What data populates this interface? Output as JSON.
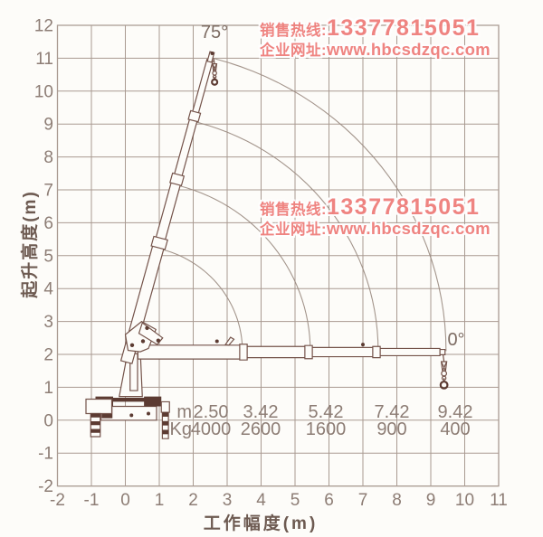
{
  "page": {
    "background": "#fdfcf9"
  },
  "watermark": {
    "hotline_label": "销售热线:",
    "hotline_number": "13377815051",
    "website_label": "企业网址:",
    "website_url": "www.hbcsdzqc.com",
    "color": "#ef7e7b",
    "instances": 2
  },
  "chart_data": {
    "type": "line",
    "xlabel": "工作幅度(m)",
    "ylabel": "起升高度(m)",
    "xlim": [
      -2,
      11
    ],
    "ylim": [
      -2,
      12
    ],
    "xticks": [
      -2,
      -1,
      0,
      1,
      2,
      3,
      4,
      5,
      6,
      7,
      8,
      9,
      10,
      11
    ],
    "yticks": [
      -2,
      -1,
      0,
      1,
      2,
      3,
      4,
      5,
      6,
      7,
      8,
      9,
      10,
      11,
      12
    ],
    "grid": true,
    "angle_labels": [
      "75°",
      "0°"
    ],
    "boom_envelope": {
      "center_x": 0.25,
      "center_y": 2.1,
      "arc_radii_m": [
        3.2,
        5.2,
        7.2,
        9.2
      ],
      "start_angle_deg": 0,
      "end_angle_deg": 75
    },
    "load_table": {
      "radius_label": "m",
      "radius_values": [
        "2.50",
        "3.42",
        "5.42",
        "7.42",
        "9.42"
      ],
      "radius_values_m": [
        2.5,
        3.42,
        5.42,
        7.42,
        9.42
      ],
      "load_label": "Kg",
      "load_values": [
        "4000",
        "2600",
        "1600",
        "900",
        "400"
      ],
      "load_values_kg": [
        4000,
        2600,
        1600,
        900,
        400
      ]
    },
    "colors": {
      "grid": "#a99a91",
      "axis_text": "#8d7d75",
      "axis_title": "#6d5a51",
      "drawing": "#5c3b32",
      "drawing_line": "#74534a",
      "arc": "#9a8a80"
    }
  }
}
